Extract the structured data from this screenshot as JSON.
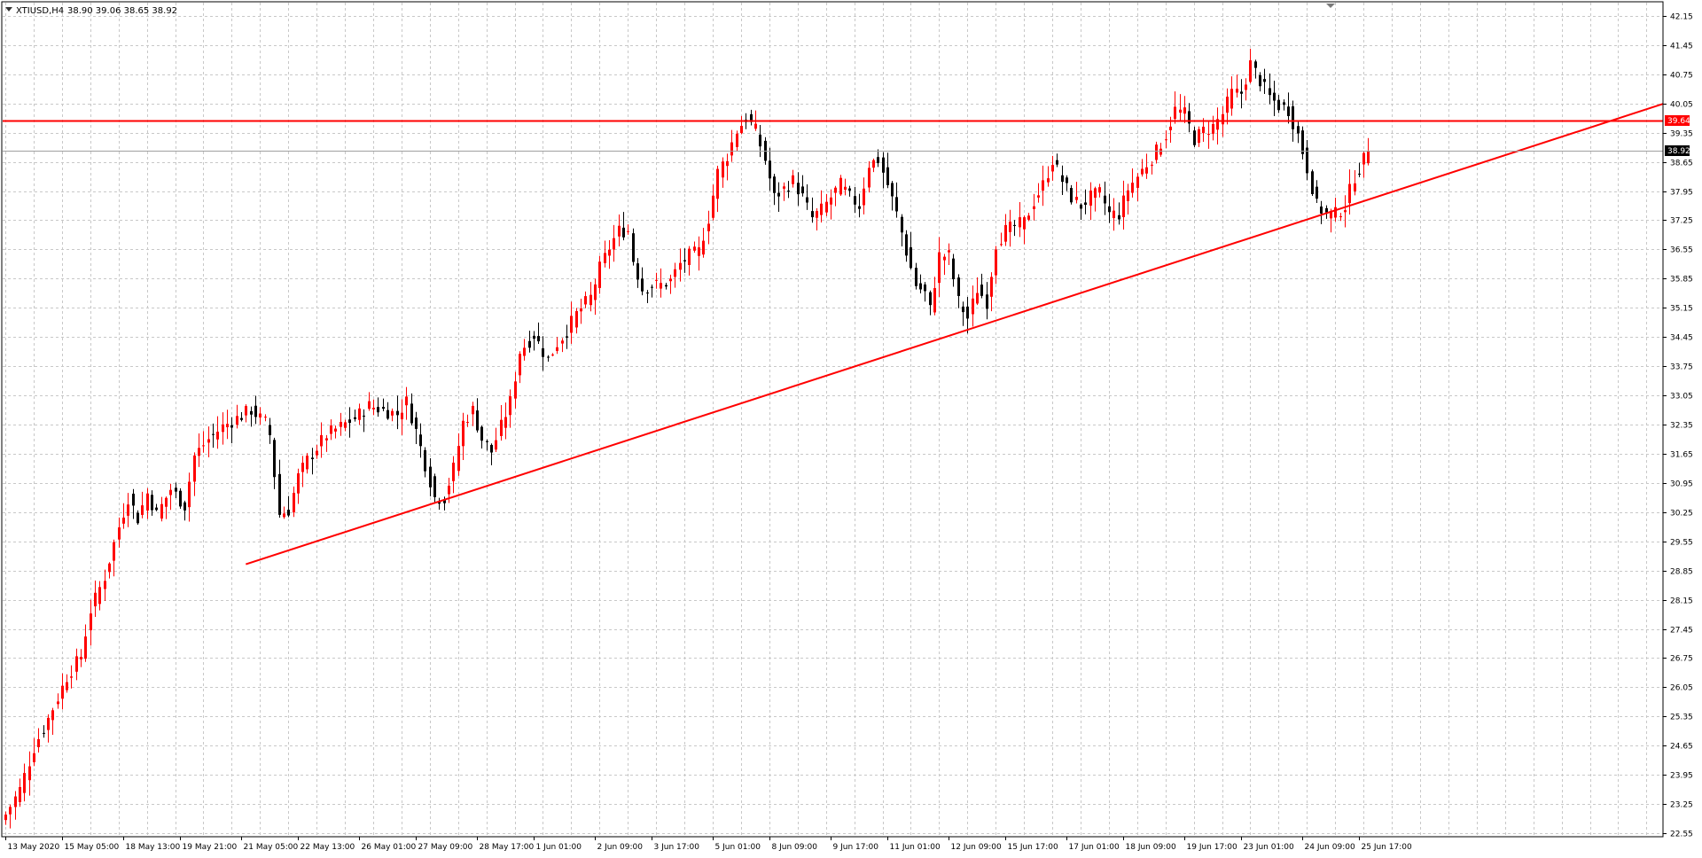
{
  "colors": {
    "background": "#ffffff",
    "grid": "#c8c8c8",
    "bull_candle": "#ff0000",
    "bear_candle": "#000000",
    "drawn_line": "#ff0000",
    "price_line": "#a0a0a0",
    "frame": "#000000"
  },
  "header": {
    "symbol": "XTIUSD,H4",
    "ohlc": "38.90 39.06 38.65 38.92",
    "menu_icon": "triangle-down-icon"
  },
  "chart_data": {
    "type": "candlestick",
    "title": "XTIUSD,H4",
    "ylim": [
      22.55,
      42.4
    ],
    "y_ticks": [
      "42.15",
      "41.45",
      "40.75",
      "40.05",
      "39.35",
      "38.65",
      "37.95",
      "37.25",
      "36.55",
      "35.85",
      "35.15",
      "34.45",
      "33.75",
      "33.05",
      "32.35",
      "31.65",
      "30.95",
      "30.25",
      "29.55",
      "28.85",
      "28.15",
      "27.45",
      "26.75",
      "26.05",
      "25.35",
      "24.65",
      "23.95",
      "23.25",
      "22.55"
    ],
    "x_ticks": [
      {
        "i": 0,
        "label": "13 May 2020"
      },
      {
        "i": 12,
        "label": "15 May 05:00"
      },
      {
        "i": 25,
        "label": "18 May 13:00"
      },
      {
        "i": 37,
        "label": "19 May 21:00"
      },
      {
        "i": 50,
        "label": "21 May 05:00"
      },
      {
        "i": 62,
        "label": "22 May 13:00"
      },
      {
        "i": 75,
        "label": "26 May 01:00"
      },
      {
        "i": 87,
        "label": "27 May 09:00"
      },
      {
        "i": 100,
        "label": "28 May 17:00"
      },
      {
        "i": 112,
        "label": "1 Jun 01:00"
      },
      {
        "i": 125,
        "label": "2 Jun 09:00"
      },
      {
        "i": 137,
        "label": "3 Jun 17:00"
      },
      {
        "i": 150,
        "label": "5 Jun 01:00"
      },
      {
        "i": 162,
        "label": "8 Jun 09:00"
      },
      {
        "i": 175,
        "label": "9 Jun 17:00"
      },
      {
        "i": 187,
        "label": "11 Jun 01:00"
      },
      {
        "i": 200,
        "label": "12 Jun 09:00"
      },
      {
        "i": 212,
        "label": "15 Jun 17:00"
      },
      {
        "i": 225,
        "label": "17 Jun 01:00"
      },
      {
        "i": 237,
        "label": "18 Jun 09:00"
      },
      {
        "i": 250,
        "label": "19 Jun 17:00"
      },
      {
        "i": 262,
        "label": "23 Jun 01:00"
      },
      {
        "i": 275,
        "label": "24 Jun 09:00"
      },
      {
        "i": 287,
        "label": "25 Jun 17:00"
      }
    ],
    "anchors": [
      [
        0,
        23.0
      ],
      [
        3,
        23.6
      ],
      [
        6,
        24.6
      ],
      [
        9,
        25.3
      ],
      [
        11,
        25.8
      ],
      [
        13,
        26.3
      ],
      [
        16,
        26.8
      ],
      [
        18,
        27.9
      ],
      [
        21,
        28.7
      ],
      [
        24,
        29.9
      ],
      [
        26,
        30.6
      ],
      [
        28,
        30.1
      ],
      [
        30,
        30.7
      ],
      [
        32,
        30.2
      ],
      [
        35,
        30.8
      ],
      [
        38,
        30.4
      ],
      [
        40,
        31.6
      ],
      [
        43,
        32.0
      ],
      [
        46,
        32.3
      ],
      [
        49,
        32.5
      ],
      [
        52,
        32.7
      ],
      [
        55,
        32.4
      ],
      [
        56,
        32.1
      ],
      [
        58,
        30.2
      ],
      [
        60,
        30.3
      ],
      [
        62,
        31.1
      ],
      [
        64,
        31.5
      ],
      [
        66,
        31.8
      ],
      [
        68,
        32.1
      ],
      [
        71,
        32.3
      ],
      [
        74,
        32.5
      ],
      [
        77,
        32.8
      ],
      [
        80,
        32.7
      ],
      [
        83,
        32.6
      ],
      [
        85,
        32.9
      ],
      [
        87,
        32.2
      ],
      [
        89,
        31.4
      ],
      [
        91,
        30.6
      ],
      [
        93,
        30.6
      ],
      [
        95,
        31.3
      ],
      [
        97,
        32.4
      ],
      [
        99,
        32.7
      ],
      [
        101,
        32.0
      ],
      [
        103,
        31.7
      ],
      [
        104,
        32.0
      ],
      [
        107,
        32.9
      ],
      [
        109,
        34.1
      ],
      [
        112,
        34.5
      ],
      [
        115,
        33.9
      ],
      [
        117,
        34.3
      ],
      [
        119,
        34.6
      ],
      [
        121,
        35.0
      ],
      [
        124,
        35.4
      ],
      [
        126,
        36.1
      ],
      [
        128,
        36.6
      ],
      [
        130,
        37.0
      ],
      [
        132,
        37.0
      ],
      [
        133,
        36.3
      ],
      [
        135,
        35.6
      ],
      [
        137,
        35.7
      ],
      [
        139,
        35.7
      ],
      [
        141,
        35.8
      ],
      [
        143,
        36.2
      ],
      [
        145,
        36.4
      ],
      [
        147,
        36.5
      ],
      [
        149,
        37.3
      ],
      [
        151,
        38.4
      ],
      [
        153,
        38.8
      ],
      [
        155,
        39.4
      ],
      [
        157,
        39.7
      ],
      [
        159,
        39.4
      ],
      [
        161,
        38.7
      ],
      [
        163,
        37.8
      ],
      [
        165,
        38.0
      ],
      [
        167,
        38.2
      ],
      [
        169,
        37.8
      ],
      [
        171,
        37.3
      ],
      [
        173,
        37.5
      ],
      [
        175,
        37.8
      ],
      [
        177,
        38.1
      ],
      [
        179,
        37.8
      ],
      [
        181,
        37.6
      ],
      [
        183,
        38.6
      ],
      [
        185,
        38.7
      ],
      [
        187,
        38.1
      ],
      [
        189,
        37.4
      ],
      [
        191,
        36.5
      ],
      [
        193,
        35.7
      ],
      [
        195,
        35.5
      ],
      [
        196,
        35.1
      ],
      [
        198,
        36.4
      ],
      [
        200,
        36.4
      ],
      [
        202,
        35.3
      ],
      [
        204,
        34.9
      ],
      [
        206,
        35.6
      ],
      [
        208,
        35.3
      ],
      [
        210,
        36.7
      ],
      [
        212,
        37.0
      ],
      [
        214,
        37.1
      ],
      [
        216,
        37.2
      ],
      [
        218,
        37.7
      ],
      [
        220,
        38.1
      ],
      [
        222,
        38.7
      ],
      [
        224,
        38.2
      ],
      [
        226,
        37.8
      ],
      [
        228,
        37.6
      ],
      [
        230,
        37.8
      ],
      [
        232,
        37.9
      ],
      [
        234,
        37.4
      ],
      [
        236,
        37.4
      ],
      [
        238,
        38.0
      ],
      [
        240,
        38.3
      ],
      [
        242,
        38.6
      ],
      [
        244,
        38.9
      ],
      [
        246,
        39.3
      ],
      [
        248,
        39.9
      ],
      [
        250,
        39.8
      ],
      [
        252,
        39.2
      ],
      [
        254,
        39.4
      ],
      [
        256,
        39.5
      ],
      [
        258,
        39.8
      ],
      [
        260,
        40.3
      ],
      [
        262,
        40.3
      ],
      [
        264,
        41.0
      ],
      [
        266,
        40.6
      ],
      [
        268,
        40.2
      ],
      [
        270,
        40.0
      ],
      [
        272,
        39.9
      ],
      [
        274,
        39.3
      ],
      [
        276,
        38.5
      ],
      [
        278,
        37.6
      ],
      [
        280,
        37.4
      ],
      [
        282,
        37.4
      ],
      [
        284,
        37.6
      ],
      [
        286,
        38.3
      ],
      [
        288,
        38.7
      ],
      [
        289,
        38.92
      ]
    ],
    "horizontal_levels": [
      {
        "value": 39.64,
        "label": "39.64",
        "color": "#ff0000"
      },
      {
        "value": 38.92,
        "label": "38.92",
        "color": "#000000"
      }
    ],
    "trendlines": [
      {
        "from": {
          "i": 51,
          "v": 29.0
        },
        "to": {
          "i": 352,
          "v": 40.06
        },
        "color": "#ff0000"
      }
    ]
  }
}
